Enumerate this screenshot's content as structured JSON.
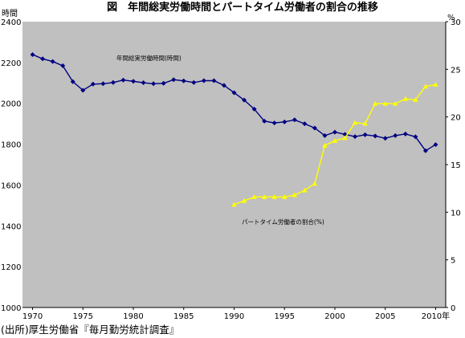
{
  "chart_data": {
    "type": "line",
    "title": "図　年間総実労働時間とパートタイム労働者の割合の推移",
    "left_axis_unit": "時間",
    "right_axis_unit": "%",
    "x_ticks": [
      "1970",
      "1975",
      "1980",
      "1985",
      "1990",
      "1995",
      "2000",
      "2005",
      "2010年"
    ],
    "x_tick_values": [
      1970,
      1975,
      1980,
      1985,
      1990,
      1995,
      2000,
      2005,
      2010
    ],
    "xlim": [
      1969,
      2011
    ],
    "ylim_left": [
      1000,
      2400
    ],
    "y_left_ticks": [
      "2400",
      "2200",
      "2000",
      "1800",
      "1600",
      "1400",
      "1200",
      "1000"
    ],
    "y_left_tick_values": [
      2400,
      2200,
      2000,
      1800,
      1600,
      1400,
      1200,
      1000
    ],
    "ylim_right": [
      0,
      30
    ],
    "y_right_ticks": [
      "30",
      "25",
      "20",
      "15",
      "10",
      "5",
      "0"
    ],
    "y_right_tick_values": [
      30,
      25,
      20,
      15,
      10,
      5,
      0
    ],
    "plot_background": "#c0c0c0",
    "series": [
      {
        "name": "年間総実労働時間(時間)",
        "axis": "left",
        "color": "#000080",
        "marker": "diamond",
        "x": [
          1970,
          1971,
          1972,
          1973,
          1974,
          1975,
          1976,
          1977,
          1978,
          1979,
          1980,
          1981,
          1982,
          1983,
          1984,
          1985,
          1986,
          1987,
          1988,
          1989,
          1990,
          1991,
          1992,
          1993,
          1994,
          1995,
          1996,
          1997,
          1998,
          1999,
          2000,
          2001,
          2002,
          2003,
          2004,
          2005,
          2006,
          2007,
          2008,
          2009,
          2010
        ],
        "values": [
          2239,
          2218,
          2205,
          2184,
          2106,
          2064,
          2094,
          2096,
          2102,
          2114,
          2108,
          2101,
          2096,
          2098,
          2116,
          2110,
          2102,
          2111,
          2111,
          2088,
          2052,
          2016,
          1972,
          1913,
          1904,
          1909,
          1919,
          1900,
          1879,
          1842,
          1859,
          1848,
          1837,
          1846,
          1840,
          1829,
          1842,
          1850,
          1836,
          1768,
          1798
        ]
      },
      {
        "name": "パートタイム労働者の割合(%)",
        "axis": "right",
        "color": "#ffff00",
        "marker": "triangle",
        "x": [
          1990,
          1991,
          1992,
          1993,
          1994,
          1995,
          1996,
          1997,
          1998,
          1999,
          2000,
          2001,
          2002,
          2003,
          2004,
          2005,
          2006,
          2007,
          2008,
          2009,
          2010
        ],
        "values": [
          10.8,
          11.2,
          11.6,
          11.6,
          11.6,
          11.6,
          11.8,
          12.3,
          13.0,
          17.0,
          17.5,
          17.8,
          19.4,
          19.3,
          21.4,
          21.4,
          21.4,
          21.9,
          21.8,
          23.2,
          23.4
        ]
      }
    ]
  },
  "source": "(出所)厚生労働省『毎月勤労統計調査』"
}
